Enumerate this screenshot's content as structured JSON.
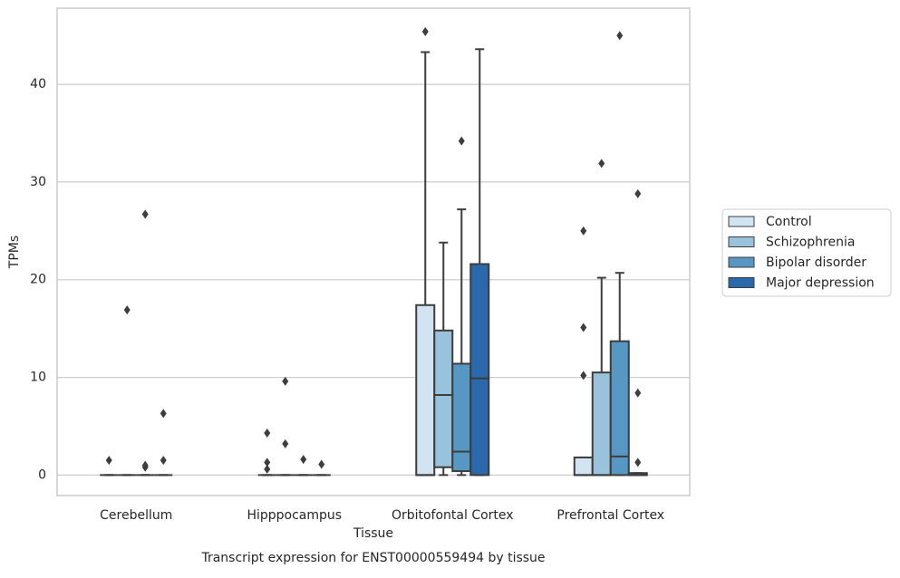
{
  "chart_data": {
    "type": "box",
    "title": "Transcript expression for ENST00000559494 by tissue",
    "xlabel": "Tissue",
    "ylabel": "TPMs",
    "categories": [
      "Cerebellum",
      "Hipppocampus",
      "Orbitofontal Cortex",
      "Prefrontal Cortex"
    ],
    "ylim": [
      -2.1,
      47.8
    ],
    "yticks": [
      0,
      10,
      20,
      30,
      40
    ],
    "grid": true,
    "legend": "right",
    "series": [
      {
        "name": "Control",
        "color": "#d2e3f1",
        "values": [
          {
            "min": 0,
            "q1": 0,
            "median": 0,
            "q3": 0,
            "max": 0,
            "outliers": [
              1.5
            ]
          },
          {
            "min": 0,
            "q1": 0,
            "median": 0,
            "q3": 0,
            "max": 0,
            "outliers": [
              4.3,
              1.3,
              0.6
            ]
          },
          {
            "min": 0,
            "q1": 0,
            "median": 0,
            "q3": 17.4,
            "max": 43.3,
            "outliers": [
              45.4
            ]
          },
          {
            "min": 0,
            "q1": 0,
            "median": 0,
            "q3": 1.8,
            "max": 1.8,
            "outliers": [
              25.0,
              15.1,
              10.2
            ]
          }
        ]
      },
      {
        "name": "Schizophrenia",
        "color": "#99c3dc",
        "values": [
          {
            "min": 0,
            "q1": 0,
            "median": 0,
            "q3": 0,
            "max": 0,
            "outliers": [
              16.9
            ]
          },
          {
            "min": 0,
            "q1": 0,
            "median": 0,
            "q3": 0,
            "max": 0,
            "outliers": [
              9.6,
              3.2
            ]
          },
          {
            "min": 0,
            "q1": 0.8,
            "median": 8.2,
            "q3": 14.8,
            "max": 23.8,
            "outliers": []
          },
          {
            "min": 0,
            "q1": 0,
            "median": 0,
            "q3": 10.5,
            "max": 20.2,
            "outliers": [
              31.9
            ]
          }
        ]
      },
      {
        "name": "Bipolar disorder",
        "color": "#5697c3",
        "values": [
          {
            "min": 0,
            "q1": 0,
            "median": 0,
            "q3": 0,
            "max": 0,
            "outliers": [
              26.7,
              1.0,
              0.8
            ]
          },
          {
            "min": 0,
            "q1": 0,
            "median": 0,
            "q3": 0,
            "max": 0,
            "outliers": [
              1.6
            ]
          },
          {
            "min": 0,
            "q1": 0.4,
            "median": 2.4,
            "q3": 11.4,
            "max": 27.2,
            "outliers": [
              34.2
            ]
          },
          {
            "min": 0,
            "q1": 0,
            "median": 1.9,
            "q3": 13.7,
            "max": 20.7,
            "outliers": [
              45.0
            ]
          }
        ]
      },
      {
        "name": "Major depression",
        "color": "#2a69ab",
        "values": [
          {
            "min": 0,
            "q1": 0,
            "median": 0,
            "q3": 0,
            "max": 0,
            "outliers": [
              6.3,
              1.5
            ]
          },
          {
            "min": 0,
            "q1": 0,
            "median": 0,
            "q3": 0,
            "max": 0,
            "outliers": [
              1.1
            ]
          },
          {
            "min": 0,
            "q1": 0,
            "median": 9.9,
            "q3": 21.6,
            "max": 43.6,
            "outliers": []
          },
          {
            "min": 0,
            "q1": 0,
            "median": 0,
            "q3": 0.2,
            "max": 0.2,
            "outliers": [
              28.8,
              8.4,
              1.3
            ]
          }
        ]
      }
    ]
  }
}
